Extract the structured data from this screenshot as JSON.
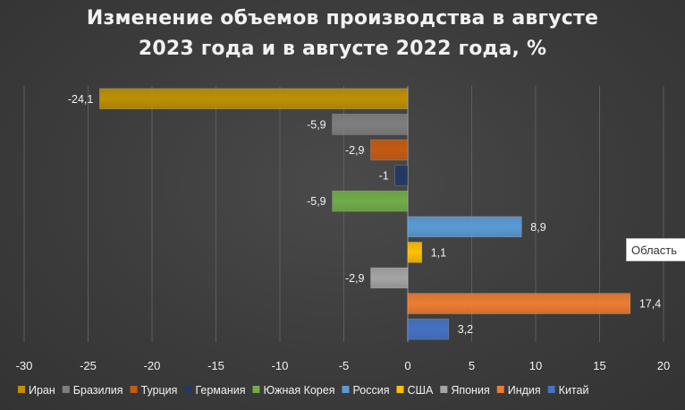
{
  "chart_data": {
    "type": "bar",
    "orientation": "horizontal",
    "title_lines": [
      "Изменение объемов производства в августе",
      "2023 года и в августе 2022 года, %"
    ],
    "categories": [
      "Иран",
      "Бразилия",
      "Турция",
      "Германия",
      "Южная Корея",
      "Россия",
      "США",
      "Япония",
      "Индия",
      "Китай"
    ],
    "values": [
      -24.1,
      -5.9,
      -2.9,
      -1,
      -5.9,
      8.9,
      1.1,
      -2.9,
      17.4,
      3.2
    ],
    "data_labels": [
      "-24,1",
      "-5,9",
      "-2,9",
      "-1",
      "-5,9",
      "8,9",
      "1,1",
      "-2,9",
      "17,4",
      "3,2"
    ],
    "colors": [
      "#bf9000",
      "#7f7f7f",
      "#c55a11",
      "#203864",
      "#70ad47",
      "#5b9bd5",
      "#ffc000",
      "#a5a5a5",
      "#ed7d31",
      "#4472c4"
    ],
    "xlim": [
      -30,
      20
    ],
    "xticks": [
      -30,
      -25,
      -20,
      -15,
      -10,
      -5,
      0,
      5,
      10,
      15,
      20
    ],
    "grid": "vertical",
    "legend_position": "bottom"
  },
  "tooltip_text": "Область",
  "theme": {
    "text": "#f2f2f2",
    "grid": "#5e5e5e",
    "axis": "#9a9a9a"
  }
}
